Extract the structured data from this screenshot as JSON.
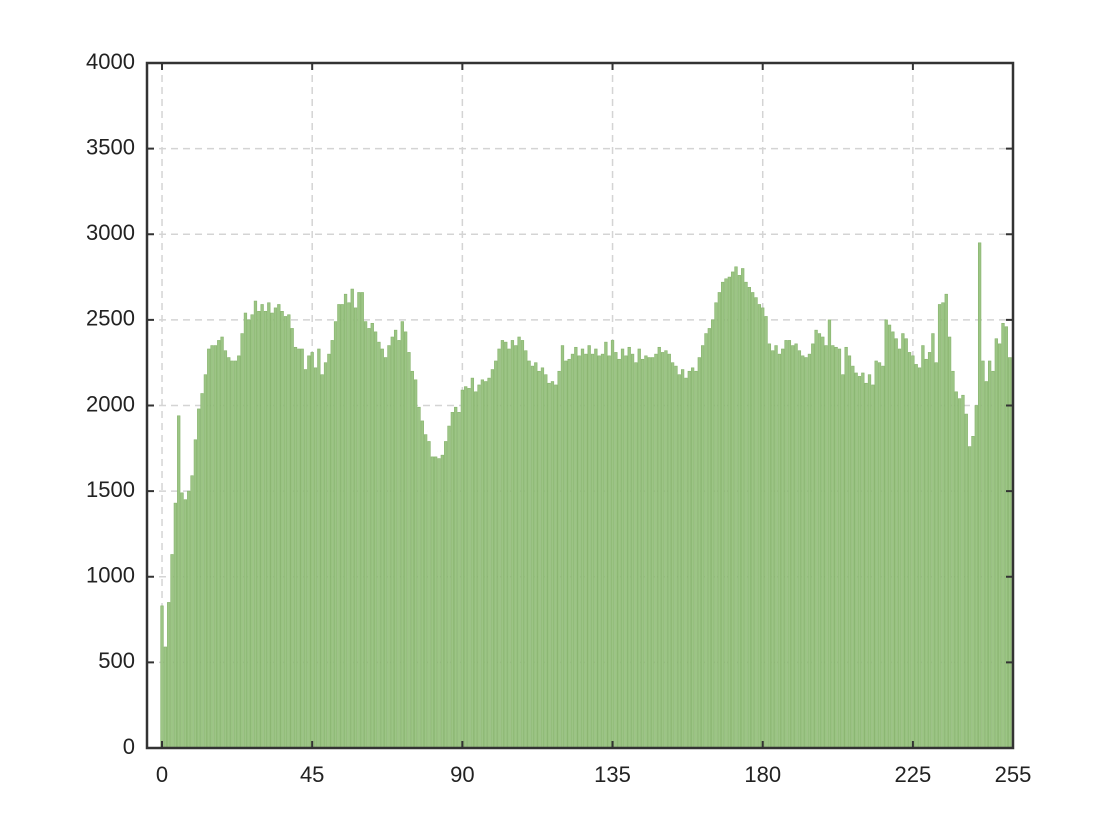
{
  "chart_data": {
    "type": "bar",
    "color": "#9cc585",
    "edge_color": "#86b36c",
    "grid": true,
    "xlim": [
      -4.5,
      255
    ],
    "ylim": [
      0,
      4000
    ],
    "xticks": [
      0,
      45,
      90,
      135,
      180,
      225,
      255
    ],
    "yticks": [
      0,
      500,
      1000,
      1500,
      2000,
      2500,
      3000,
      3500,
      4000
    ],
    "x": [
      0,
      1,
      2,
      3,
      4,
      5,
      6,
      7,
      8,
      9,
      10,
      11,
      12,
      13,
      14,
      15,
      16,
      17,
      18,
      19,
      20,
      21,
      22,
      23,
      24,
      25,
      26,
      27,
      28,
      29,
      30,
      31,
      32,
      33,
      34,
      35,
      36,
      37,
      38,
      39,
      40,
      41,
      42,
      43,
      44,
      45,
      46,
      47,
      48,
      49,
      50,
      51,
      52,
      53,
      54,
      55,
      56,
      57,
      58,
      59,
      60,
      61,
      62,
      63,
      64,
      65,
      66,
      67,
      68,
      69,
      70,
      71,
      72,
      73,
      74,
      75,
      76,
      77,
      78,
      79,
      80,
      81,
      82,
      83,
      84,
      85,
      86,
      87,
      88,
      89,
      90,
      91,
      92,
      93,
      94,
      95,
      96,
      97,
      98,
      99,
      100,
      101,
      102,
      103,
      104,
      105,
      106,
      107,
      108,
      109,
      110,
      111,
      112,
      113,
      114,
      115,
      116,
      117,
      118,
      119,
      120,
      121,
      122,
      123,
      124,
      125,
      126,
      127,
      128,
      129,
      130,
      131,
      132,
      133,
      134,
      135,
      136,
      137,
      138,
      139,
      140,
      141,
      142,
      143,
      144,
      145,
      146,
      147,
      148,
      149,
      150,
      151,
      152,
      153,
      154,
      155,
      156,
      157,
      158,
      159,
      160,
      161,
      162,
      163,
      164,
      165,
      166,
      167,
      168,
      169,
      170,
      171,
      172,
      173,
      174,
      175,
      176,
      177,
      178,
      179,
      180,
      181,
      182,
      183,
      184,
      185,
      186,
      187,
      188,
      189,
      190,
      191,
      192,
      193,
      194,
      195,
      196,
      197,
      198,
      199,
      200,
      201,
      202,
      203,
      204,
      205,
      206,
      207,
      208,
      209,
      210,
      211,
      212,
      213,
      214,
      215,
      216,
      217,
      218,
      219,
      220,
      221,
      222,
      223,
      224,
      225,
      226,
      227,
      228,
      229,
      230,
      231,
      232,
      233,
      234,
      235,
      236,
      237,
      238,
      239,
      240,
      241,
      242,
      243,
      244,
      245,
      246,
      247,
      248,
      249,
      250,
      251,
      252,
      253,
      254,
      255
    ],
    "values": [
      830,
      590,
      850,
      1130,
      1430,
      1940,
      1490,
      1450,
      1500,
      1590,
      1800,
      1980,
      2070,
      2180,
      2330,
      2350,
      2350,
      2380,
      2400,
      2320,
      2280,
      2260,
      2260,
      2290,
      2420,
      2540,
      2500,
      2530,
      2610,
      2550,
      2590,
      2550,
      2600,
      2540,
      2570,
      2590,
      2550,
      2520,
      2530,
      2450,
      2340,
      2330,
      2330,
      2210,
      2290,
      2310,
      2220,
      2330,
      2180,
      2250,
      2300,
      2380,
      2490,
      2590,
      2590,
      2650,
      2600,
      2680,
      2570,
      2660,
      2660,
      2490,
      2450,
      2480,
      2430,
      2370,
      2330,
      2280,
      2350,
      2400,
      2440,
      2380,
      2490,
      2430,
      2310,
      2200,
      2150,
      1990,
      1910,
      1830,
      1790,
      1700,
      1700,
      1690,
      1710,
      1790,
      1880,
      1960,
      1990,
      1960,
      2090,
      2110,
      2100,
      2160,
      2080,
      2120,
      2150,
      2140,
      2160,
      2210,
      2260,
      2330,
      2380,
      2370,
      2330,
      2380,
      2350,
      2400,
      2380,
      2320,
      2260,
      2230,
      2250,
      2200,
      2220,
      2180,
      2130,
      2140,
      2120,
      2200,
      2350,
      2260,
      2270,
      2300,
      2340,
      2290,
      2330,
      2300,
      2350,
      2300,
      2330,
      2290,
      2300,
      2370,
      2290,
      2380,
      2310,
      2270,
      2330,
      2290,
      2340,
      2300,
      2250,
      2330,
      2270,
      2290,
      2280,
      2280,
      2300,
      2340,
      2310,
      2320,
      2300,
      2250,
      2230,
      2180,
      2210,
      2160,
      2200,
      2220,
      2200,
      2280,
      2350,
      2420,
      2450,
      2500,
      2600,
      2660,
      2720,
      2740,
      2750,
      2780,
      2810,
      2760,
      2800,
      2720,
      2690,
      2660,
      2630,
      2590,
      2570,
      2520,
      2360,
      2320,
      2350,
      2300,
      2330,
      2380,
      2380,
      2350,
      2360,
      2320,
      2290,
      2280,
      2300,
      2360,
      2440,
      2420,
      2400,
      2350,
      2500,
      2350,
      2340,
      2330,
      2180,
      2340,
      2290,
      2230,
      2190,
      2170,
      2190,
      2130,
      2180,
      2120,
      2260,
      2250,
      2230,
      2500,
      2470,
      2430,
      2390,
      2330,
      2420,
      2390,
      2310,
      2290,
      2240,
      2220,
      2350,
      2270,
      2310,
      2420,
      2250,
      2590,
      2600,
      2650,
      2400,
      2200,
      2080,
      2040,
      2060,
      1950,
      1760,
      1820,
      2000,
      2950,
      2260,
      2140,
      2260,
      2200,
      2390,
      2360,
      2480,
      2460,
      2280,
      2280
    ]
  }
}
